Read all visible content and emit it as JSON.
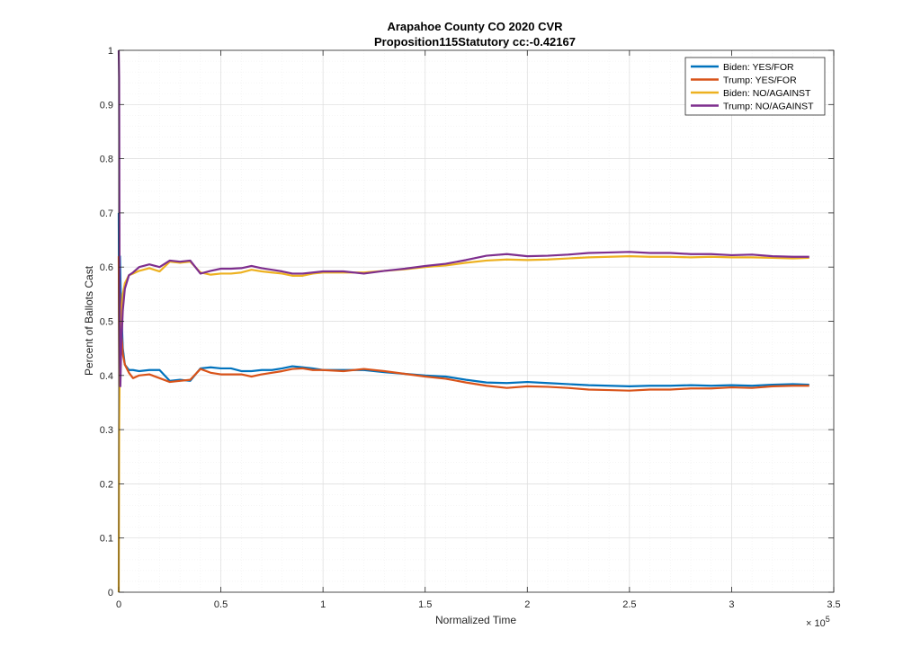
{
  "chart_data": {
    "type": "line",
    "title": "Arapahoe County CO 2020 CVR",
    "subtitle": "Proposition115Statutory cc:-0.42167",
    "xlabel": "Normalized Time",
    "ylabel": "Percent of Ballots Cast",
    "x_exponent_label": "× 10",
    "x_exponent_power": "5",
    "xlim": [
      0,
      3.5
    ],
    "ylim": [
      0,
      1
    ],
    "x_ticks": [
      0,
      0.5,
      1,
      1.5,
      2,
      2.5,
      3,
      3.5
    ],
    "x_tick_labels": [
      "0",
      "0.5",
      "1",
      "1.5",
      "2",
      "2.5",
      "3",
      "3.5"
    ],
    "y_ticks": [
      0,
      0.1,
      0.2,
      0.3,
      0.4,
      0.5,
      0.6,
      0.7,
      0.8,
      0.9,
      1
    ],
    "y_tick_labels": [
      "0",
      "0.1",
      "0.2",
      "0.3",
      "0.4",
      "0.5",
      "0.6",
      "0.7",
      "0.8",
      "0.9",
      "1"
    ],
    "grid": true,
    "minor_grid": true,
    "legend_position": "top-right",
    "series": [
      {
        "name": "Biden: YES/FOR",
        "color": "#0072BD",
        "x": [
          0,
          0.003,
          0.006,
          0.01,
          0.015,
          0.02,
          0.03,
          0.05,
          0.07,
          0.1,
          0.15,
          0.2,
          0.25,
          0.3,
          0.35,
          0.4,
          0.45,
          0.5,
          0.55,
          0.6,
          0.65,
          0.7,
          0.75,
          0.8,
          0.85,
          0.9,
          0.95,
          1,
          1.1,
          1.2,
          1.3,
          1.4,
          1.5,
          1.6,
          1.7,
          1.8,
          1.9,
          2,
          2.1,
          2.2,
          2.3,
          2.4,
          2.5,
          2.6,
          2.7,
          2.8,
          2.9,
          3,
          3.1,
          3.2,
          3.3,
          3.38
        ],
        "y": [
          0.7,
          0.4,
          0.62,
          0.55,
          0.5,
          0.45,
          0.42,
          0.41,
          0.41,
          0.408,
          0.41,
          0.41,
          0.39,
          0.392,
          0.39,
          0.413,
          0.415,
          0.413,
          0.413,
          0.408,
          0.408,
          0.41,
          0.41,
          0.413,
          0.417,
          0.415,
          0.413,
          0.41,
          0.41,
          0.41,
          0.406,
          0.403,
          0.4,
          0.398,
          0.392,
          0.387,
          0.386,
          0.388,
          0.386,
          0.384,
          0.382,
          0.381,
          0.38,
          0.381,
          0.381,
          0.382,
          0.381,
          0.382,
          0.381,
          0.383,
          0.384,
          0.383
        ]
      },
      {
        "name": "Trump: YES/FOR",
        "color": "#D95319",
        "x": [
          0,
          0.003,
          0.006,
          0.01,
          0.015,
          0.02,
          0.03,
          0.05,
          0.07,
          0.1,
          0.15,
          0.2,
          0.25,
          0.3,
          0.35,
          0.4,
          0.45,
          0.5,
          0.55,
          0.6,
          0.65,
          0.7,
          0.75,
          0.8,
          0.85,
          0.9,
          0.95,
          1,
          1.1,
          1.2,
          1.3,
          1.4,
          1.5,
          1.6,
          1.7,
          1.8,
          1.9,
          2,
          2.1,
          2.2,
          2.3,
          2.4,
          2.5,
          2.6,
          2.7,
          2.8,
          2.9,
          3,
          3.1,
          3.2,
          3.3,
          3.38
        ],
        "y": [
          0.62,
          0.38,
          0.55,
          0.5,
          0.47,
          0.44,
          0.42,
          0.405,
          0.395,
          0.4,
          0.402,
          0.395,
          0.388,
          0.39,
          0.392,
          0.412,
          0.405,
          0.402,
          0.402,
          0.402,
          0.398,
          0.402,
          0.405,
          0.408,
          0.412,
          0.413,
          0.41,
          0.41,
          0.408,
          0.412,
          0.408,
          0.403,
          0.398,
          0.394,
          0.387,
          0.381,
          0.377,
          0.38,
          0.379,
          0.377,
          0.374,
          0.373,
          0.372,
          0.374,
          0.374,
          0.376,
          0.376,
          0.378,
          0.377,
          0.38,
          0.381,
          0.381
        ]
      },
      {
        "name": "Biden: NO/AGAINST",
        "color": "#EDB120",
        "x": [
          0,
          0.002,
          0.004,
          0.008,
          0.012,
          0.02,
          0.03,
          0.05,
          0.07,
          0.1,
          0.15,
          0.2,
          0.25,
          0.3,
          0.35,
          0.4,
          0.45,
          0.5,
          0.55,
          0.6,
          0.65,
          0.7,
          0.75,
          0.8,
          0.85,
          0.9,
          0.95,
          1,
          1.1,
          1.2,
          1.3,
          1.4,
          1.5,
          1.6,
          1.7,
          1.8,
          1.9,
          2,
          2.1,
          2.2,
          2.3,
          2.4,
          2.5,
          2.6,
          2.7,
          2.8,
          2.9,
          3,
          3.1,
          3.2,
          3.3,
          3.38
        ],
        "y": [
          0,
          0.3,
          0.38,
          0.45,
          0.5,
          0.55,
          0.57,
          0.585,
          0.588,
          0.593,
          0.598,
          0.592,
          0.61,
          0.608,
          0.61,
          0.59,
          0.586,
          0.588,
          0.588,
          0.59,
          0.595,
          0.592,
          0.59,
          0.588,
          0.584,
          0.584,
          0.588,
          0.59,
          0.59,
          0.59,
          0.593,
          0.596,
          0.6,
          0.603,
          0.608,
          0.612,
          0.614,
          0.613,
          0.614,
          0.616,
          0.618,
          0.619,
          0.62,
          0.619,
          0.619,
          0.618,
          0.619,
          0.618,
          0.618,
          0.617,
          0.616,
          0.617
        ]
      },
      {
        "name": "Trump: NO/AGAINST",
        "color": "#7E2F8E",
        "x": [
          0,
          0.002,
          0.004,
          0.008,
          0.012,
          0.02,
          0.03,
          0.05,
          0.07,
          0.1,
          0.15,
          0.2,
          0.25,
          0.3,
          0.35,
          0.4,
          0.45,
          0.5,
          0.55,
          0.6,
          0.65,
          0.7,
          0.75,
          0.8,
          0.85,
          0.9,
          0.95,
          1,
          1.1,
          1.2,
          1.3,
          1.4,
          1.5,
          1.6,
          1.7,
          1.8,
          1.9,
          2,
          2.1,
          2.2,
          2.3,
          2.4,
          2.5,
          2.6,
          2.7,
          2.8,
          2.9,
          3,
          3.1,
          3.2,
          3.3,
          3.38
        ],
        "y": [
          1,
          0.95,
          0.6,
          0.38,
          0.45,
          0.52,
          0.56,
          0.585,
          0.59,
          0.6,
          0.605,
          0.6,
          0.612,
          0.61,
          0.612,
          0.588,
          0.593,
          0.597,
          0.597,
          0.598,
          0.602,
          0.598,
          0.595,
          0.592,
          0.588,
          0.588,
          0.59,
          0.592,
          0.592,
          0.588,
          0.593,
          0.597,
          0.602,
          0.606,
          0.613,
          0.621,
          0.624,
          0.62,
          0.621,
          0.623,
          0.626,
          0.627,
          0.628,
          0.626,
          0.626,
          0.624,
          0.624,
          0.622,
          0.623,
          0.62,
          0.619,
          0.619
        ]
      }
    ]
  }
}
